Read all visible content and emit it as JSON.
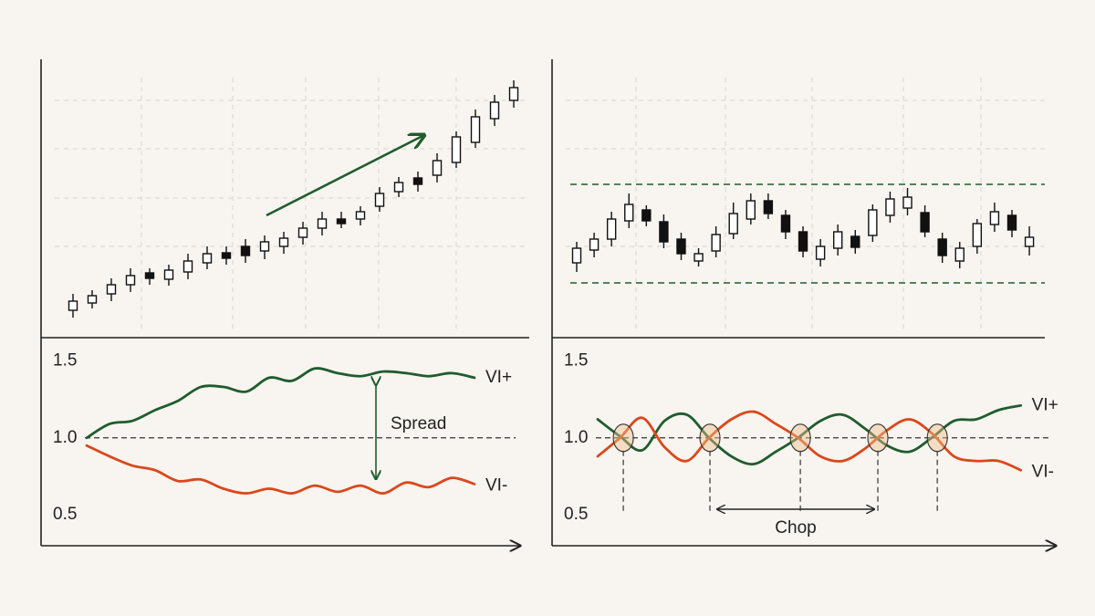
{
  "chart_data": [
    {
      "type": "candlestick",
      "open": [
        30,
        38,
        48,
        58,
        71,
        64,
        72,
        82,
        93,
        100,
        95,
        100,
        110,
        120,
        130,
        130,
        144,
        160,
        175,
        178,
        192,
        214,
        240,
        260
      ],
      "high": [
        48,
        52,
        65,
        76,
        76,
        80,
        92,
        100,
        100,
        108,
        112,
        116,
        127,
        138,
        138,
        144,
        165,
        176,
        182,
        202,
        226,
        250,
        266,
        282
      ],
      "low": [
        22,
        32,
        40,
        50,
        58,
        57,
        64,
        75,
        80,
        82,
        86,
        92,
        102,
        112,
        120,
        123,
        138,
        154,
        160,
        170,
        186,
        208,
        232,
        252
      ],
      "close": [
        40,
        46,
        58,
        68,
        65,
        74,
        84,
        92,
        87,
        90,
        105,
        109,
        120,
        130,
        125,
        138,
        158,
        170,
        168,
        194,
        220,
        242,
        258,
        274
      ],
      "ylim": [
        0,
        305
      ],
      "bull_color": "#ffffff",
      "bear_color": "#111111"
    },
    {
      "type": "candlestick",
      "open": [
        82,
        96,
        108,
        128,
        140,
        127,
        108,
        84,
        95,
        114,
        130,
        150,
        134,
        116,
        86,
        98,
        111,
        112,
        134,
        142,
        137,
        108,
        84,
        100,
        124,
        134,
        100
      ],
      "high": [
        105,
        115,
        138,
        158,
        145,
        135,
        115,
        98,
        122,
        148,
        158,
        158,
        140,
        122,
        108,
        124,
        118,
        146,
        160,
        164,
        145,
        115,
        105,
        130,
        148,
        140,
        122
      ],
      "low": [
        72,
        88,
        100,
        120,
        122,
        98,
        85,
        78,
        88,
        108,
        124,
        130,
        108,
        88,
        78,
        90,
        92,
        105,
        126,
        134,
        110,
        82,
        76,
        92,
        116,
        110,
        90
      ],
      "close": [
        98,
        108,
        130,
        146,
        128,
        105,
        92,
        92,
        113,
        136,
        150,
        136,
        116,
        95,
        100,
        116,
        99,
        140,
        152,
        154,
        116,
        90,
        98,
        125,
        138,
        118,
        110
      ],
      "ylim": [
        0,
        305
      ],
      "bull_color": "#ffffff",
      "bear_color": "#111111",
      "range_levels": [
        168,
        60
      ],
      "range_color": "#1f5c2e"
    },
    {
      "type": "line",
      "x": [
        0,
        1,
        2,
        3,
        4,
        5,
        6,
        7,
        8,
        9,
        10,
        11,
        12,
        13,
        14,
        15,
        16,
        17
      ],
      "xlim": [
        -2,
        19
      ],
      "ylim": [
        0.3,
        1.65
      ],
      "yticks": [
        0.5,
        {
          "value": 1,
          "label": "1.0"
        },
        1.5
      ],
      "reference_line": 1,
      "series": [
        {
          "name": "VI+",
          "color": "#1f5c2e",
          "values": [
            1.0,
            1.09,
            1.11,
            1.18,
            1.24,
            1.33,
            1.33,
            1.3,
            1.39,
            1.37,
            1.45,
            1.42,
            1.4,
            1.43,
            1.42,
            1.4,
            1.42,
            1.39
          ]
        },
        {
          "name": "VI-",
          "color": "#d9481c",
          "values": [
            0.95,
            0.88,
            0.82,
            0.79,
            0.72,
            0.73,
            0.67,
            0.64,
            0.67,
            0.64,
            0.69,
            0.65,
            0.69,
            0.64,
            0.71,
            0.68,
            0.74,
            0.7
          ]
        }
      ],
      "annotation": "Spread"
    },
    {
      "type": "line",
      "x": [
        0,
        1,
        2,
        3,
        4,
        5,
        6,
        7,
        8,
        9,
        10,
        11,
        12,
        13,
        14,
        15,
        16,
        17,
        18,
        19
      ],
      "xlim": [
        -2.05,
        20.57
      ],
      "ylim": [
        0.3,
        1.65
      ],
      "yticks": [
        0.5,
        {
          "value": 1,
          "label": "1.0"
        },
        1.5
      ],
      "reference_line": 1,
      "series": [
        {
          "name": "VI+",
          "color": "#1f5c2e",
          "values": [
            1.12,
            1.01,
            0.92,
            1.11,
            1.15,
            1.0,
            0.88,
            0.83,
            0.91,
            1.0,
            1.11,
            1.15,
            1.06,
            0.95,
            0.91,
            1.0,
            1.11,
            1.12,
            1.18,
            1.21
          ]
        },
        {
          "name": "VI-",
          "color": "#d9481c",
          "values": [
            0.88,
            1.0,
            1.13,
            0.94,
            0.85,
            1.0,
            1.12,
            1.17,
            1.09,
            1.0,
            0.88,
            0.85,
            0.93,
            1.05,
            1.12,
            1.03,
            0.88,
            0.85,
            0.85,
            0.79
          ]
        }
      ],
      "crossings": [
        1.15,
        5.04,
        9.1,
        12.58,
        15.25
      ],
      "annotation": "Chop",
      "annotation_color": "#d9481c"
    }
  ]
}
